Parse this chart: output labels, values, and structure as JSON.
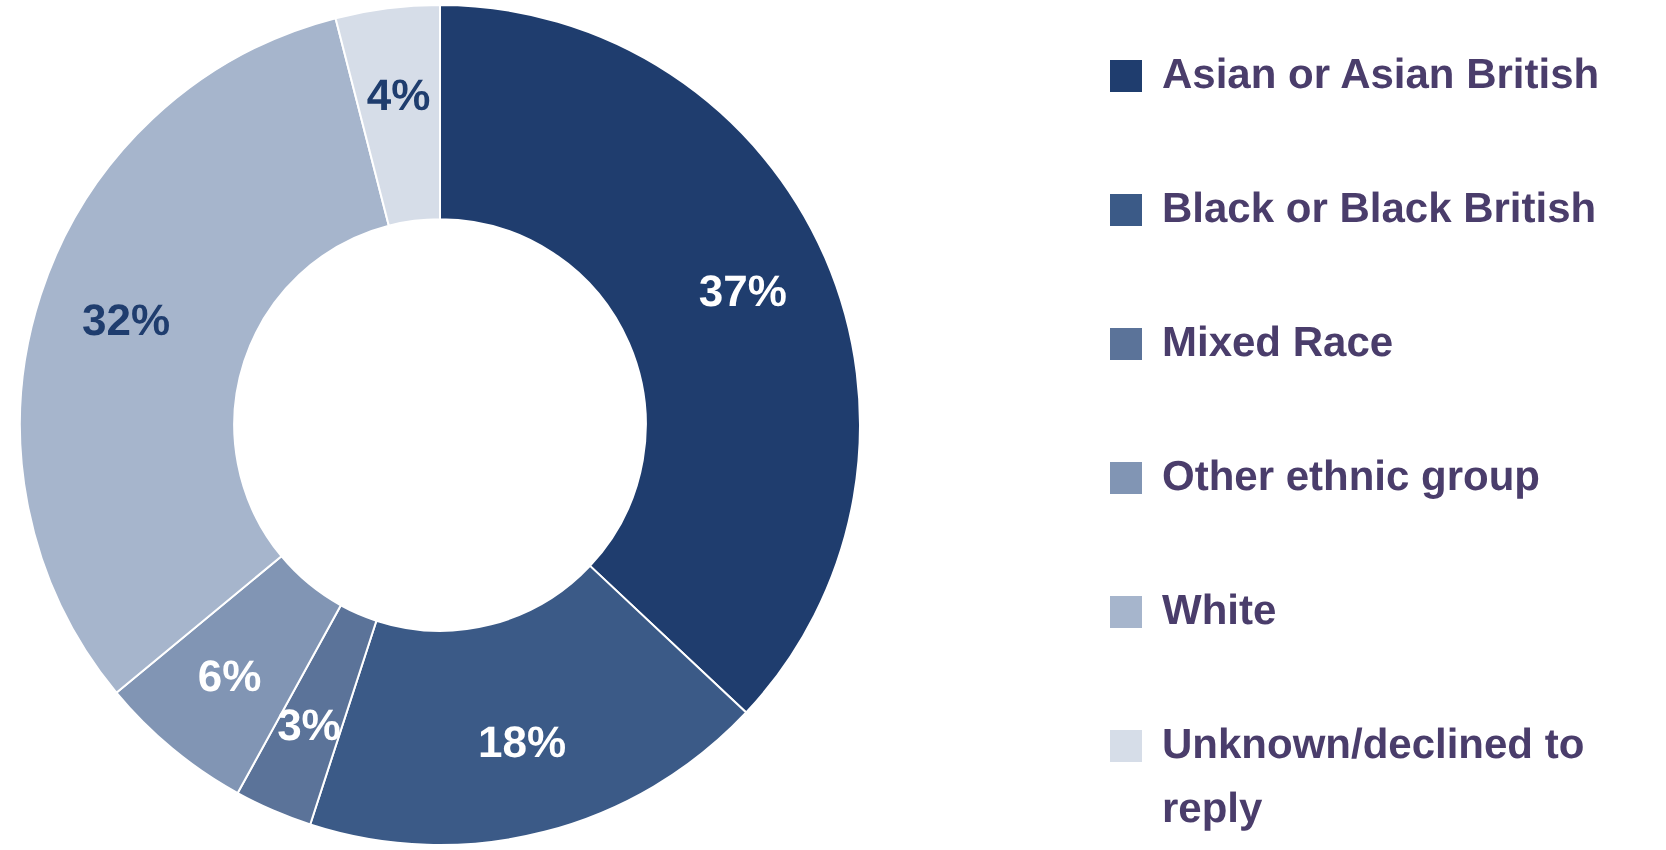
{
  "chart_data": {
    "type": "donut",
    "categories": [
      "Asian or Asian British",
      "Black or Black British",
      "Mixed Race",
      "Other ethnic group",
      "White",
      "Unknown/declined to reply"
    ],
    "values": [
      37,
      18,
      3,
      6,
      32,
      4
    ],
    "colors": [
      "#1f3d6e",
      "#3b5a87",
      "#5b7399",
      "#8195b4",
      "#a6b5cc",
      "#d6dde8"
    ],
    "value_labels": [
      "37%",
      "18%",
      "3%",
      "6%",
      "32%",
      "4%"
    ],
    "legend": "right"
  }
}
